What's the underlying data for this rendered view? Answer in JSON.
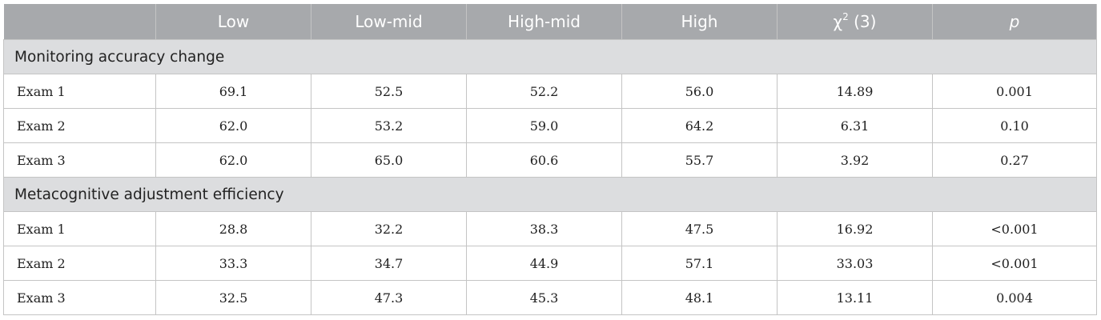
{
  "header": {
    "corner": "",
    "columns": [
      "Low",
      "Low-mid",
      "High-mid",
      "High"
    ],
    "chi_base": "χ",
    "chi_sup": "2",
    "chi_df": " (3)",
    "p": "p"
  },
  "sections": [
    {
      "title": "Monitoring accuracy change",
      "rows": [
        {
          "label": "Exam 1",
          "values": [
            "69.1",
            "52.5",
            "52.2",
            "56.0",
            "14.89",
            "0.001"
          ]
        },
        {
          "label": "Exam 2",
          "values": [
            "62.0",
            "53.2",
            "59.0",
            "64.2",
            "6.31",
            "0.10"
          ]
        },
        {
          "label": "Exam 3",
          "values": [
            "62.0",
            "65.0",
            "60.6",
            "55.7",
            "3.92",
            "0.27"
          ]
        }
      ]
    },
    {
      "title": "Metacognitive adjustment efficiency",
      "rows": [
        {
          "label": "Exam 1",
          "values": [
            "28.8",
            "32.2",
            "38.3",
            "47.5",
            "16.92",
            "<0.001"
          ]
        },
        {
          "label": "Exam 2",
          "values": [
            "33.3",
            "34.7",
            "44.9",
            "57.1",
            "33.03",
            "<0.001"
          ]
        },
        {
          "label": "Exam 3",
          "values": [
            "32.5",
            "47.3",
            "45.3",
            "48.1",
            "13.11",
            "0.004"
          ]
        }
      ]
    }
  ]
}
